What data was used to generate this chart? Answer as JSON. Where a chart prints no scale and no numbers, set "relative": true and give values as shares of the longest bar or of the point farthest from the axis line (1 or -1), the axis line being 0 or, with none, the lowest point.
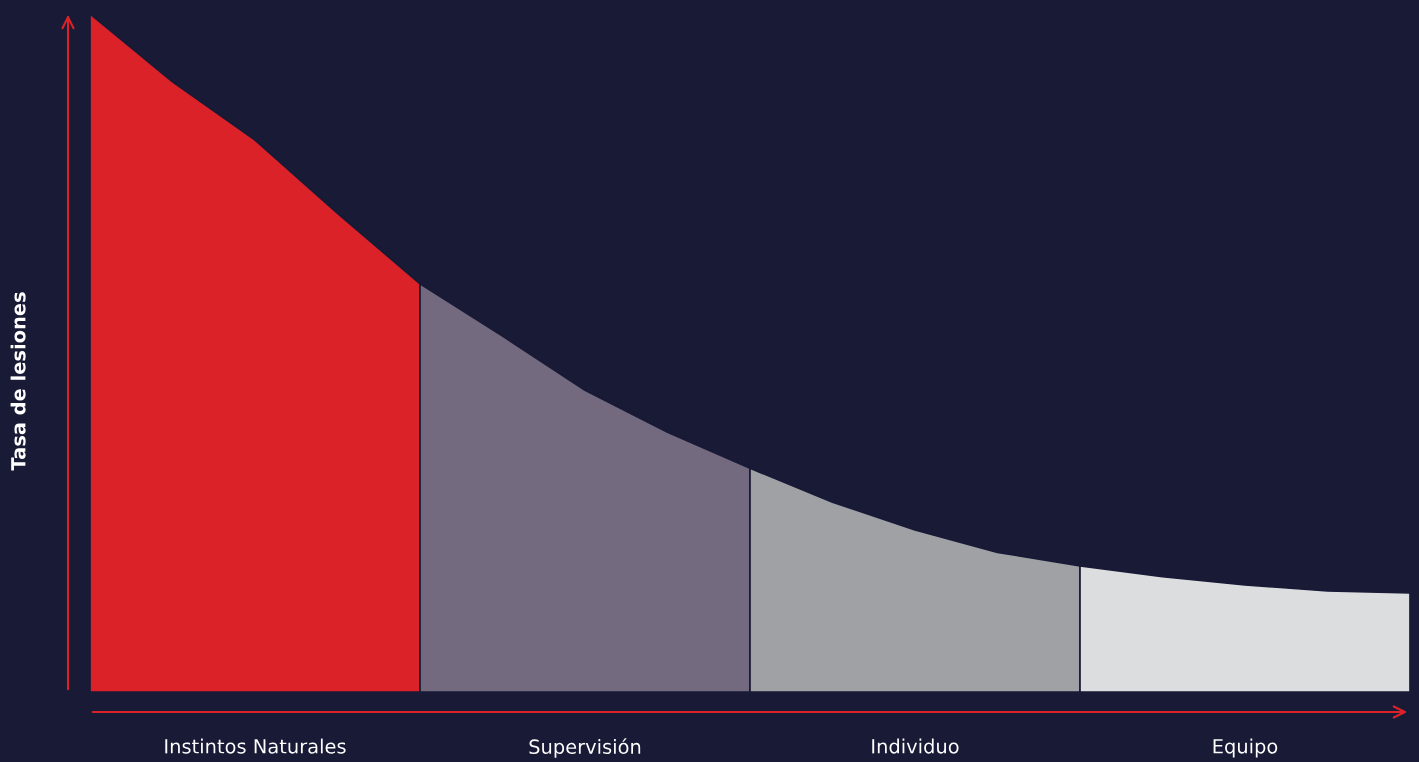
{
  "chart_data": {
    "type": "area",
    "relative": true,
    "ylabel": "Tasa de lesiones",
    "categories": [
      null,
      null,
      null,
      null,
      null,
      null,
      null,
      null,
      null,
      null,
      null,
      null,
      null,
      null,
      null,
      null,
      null
    ],
    "annotations": [
      "Instintos Naturales",
      "Supervisión",
      "Individuo",
      "Equipo"
    ],
    "grid": false,
    "legend": false,
    "series": [
      {
        "color": "#dc2229",
        "values": [
          1.0,
          0.9,
          0.814,
          0.706,
          0.602,
          null,
          null,
          null,
          null,
          null,
          null,
          null,
          null,
          null,
          null,
          null,
          null
        ]
      },
      {
        "color": "#736a80",
        "values": [
          null,
          null,
          null,
          null,
          0.602,
          0.525,
          0.445,
          0.383,
          0.33,
          null,
          null,
          null,
          null,
          null,
          null,
          null,
          null
        ]
      },
      {
        "color": "#a0a1a5",
        "values": [
          null,
          null,
          null,
          null,
          null,
          null,
          null,
          null,
          0.33,
          0.28,
          0.239,
          0.206,
          0.186,
          null,
          null,
          null,
          null
        ]
      },
      {
        "color": "#dcdddf",
        "values": [
          null,
          null,
          null,
          null,
          null,
          null,
          null,
          null,
          null,
          null,
          null,
          null,
          0.186,
          0.17,
          0.158,
          0.149,
          0.146
        ]
      }
    ]
  }
}
